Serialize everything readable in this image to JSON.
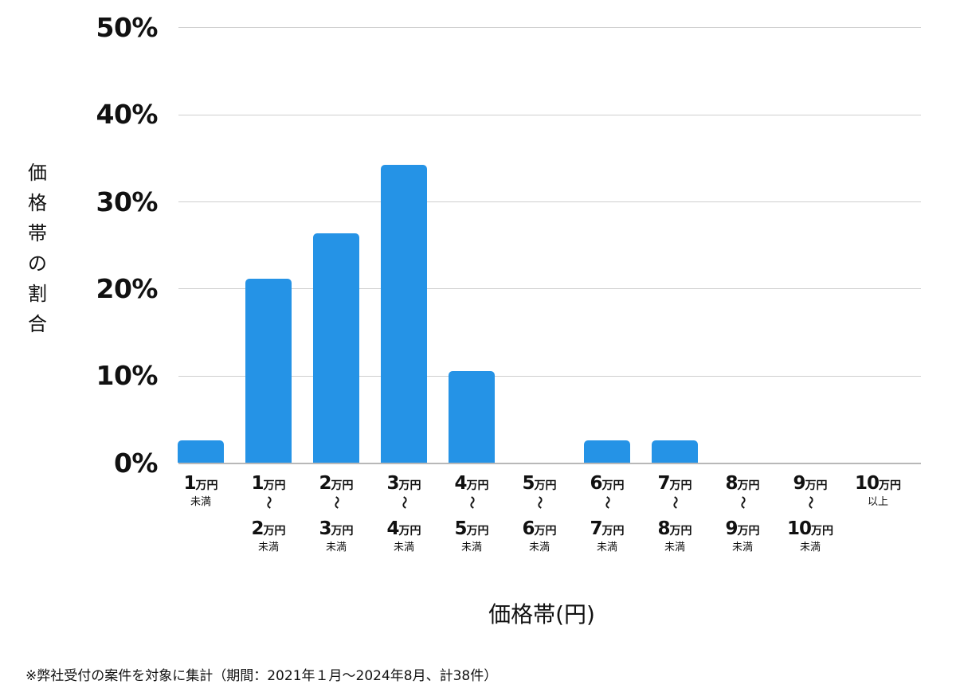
{
  "chart_data": {
    "type": "bar",
    "title": "",
    "xlabel": "価格帯(円)",
    "ylabel": "価格帯の割合",
    "ylim": [
      0,
      50
    ],
    "yticks": [
      "0%",
      "10%",
      "20%",
      "30%",
      "40%",
      "50%"
    ],
    "grid": true,
    "bar_color": "#2593e6",
    "categories": [
      "1万円未満",
      "1万円〜2万円未満",
      "2万円〜3万円未満",
      "3万円〜4万円未満",
      "4万円〜5万円未満",
      "5万円〜6万円未満",
      "6万円〜7万円未満",
      "7万円〜8万円未満",
      "8万円〜9万円未満",
      "9万円〜10万円未満",
      "10万円以上"
    ],
    "values": [
      2.6,
      21.1,
      26.3,
      34.2,
      10.5,
      0,
      2.6,
      2.6,
      0,
      0,
      0
    ],
    "note": "※弊社受付の案件を対象に集計（期間：2021年１月〜2024年8月、計38件）"
  },
  "axis": {
    "yticks": [
      "50%",
      "40%",
      "30%",
      "20%",
      "10%",
      "0%"
    ],
    "ylabel_chars": [
      "価",
      "格",
      "帯",
      "の",
      "割",
      "合"
    ],
    "xtitle": "価格帯(円)"
  },
  "xlabels": [
    {
      "from": "1",
      "to": null,
      "cond": "未満"
    },
    {
      "from": "1",
      "to": "2",
      "cond": "未満"
    },
    {
      "from": "2",
      "to": "3",
      "cond": "未満"
    },
    {
      "from": "3",
      "to": "4",
      "cond": "未満"
    },
    {
      "from": "4",
      "to": "5",
      "cond": "未満"
    },
    {
      "from": "5",
      "to": "6",
      "cond": "未満"
    },
    {
      "from": "6",
      "to": "7",
      "cond": "未満"
    },
    {
      "from": "7",
      "to": "8",
      "cond": "未満"
    },
    {
      "from": "8",
      "to": "9",
      "cond": "未満"
    },
    {
      "from": "9",
      "to": "10",
      "cond": "未満"
    },
    {
      "from": "10",
      "to": null,
      "cond": "以上"
    }
  ],
  "unit": "万円",
  "tilde": "〜",
  "footnote": "※弊社受付の案件を対象に集計（期間：2021年１月〜2024年8月、計38件）"
}
